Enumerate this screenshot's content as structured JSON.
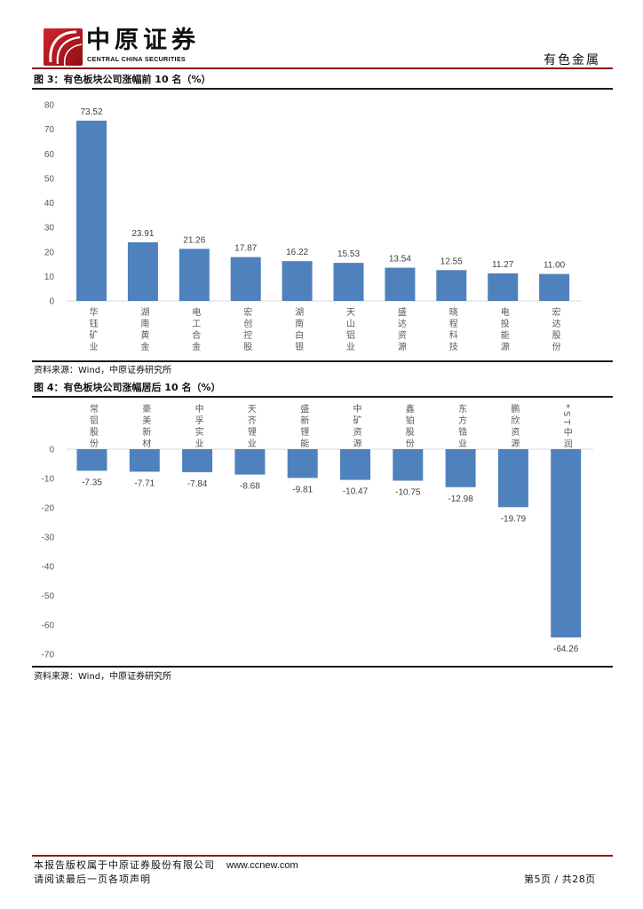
{
  "header": {
    "logo_cn": "中原证券",
    "logo_en": "CENTRAL CHINA SECURITIES",
    "section": "有色金属"
  },
  "colors": {
    "brand_red": "#8B1A1A",
    "bar": "#4F81BD"
  },
  "chart_data": [
    {
      "type": "bar",
      "title": "图 3：有色板块公司涨幅前 10 名（%）",
      "categories": [
        "华钰矿业",
        "湖南黄金",
        "电工合金",
        "宏创控股",
        "湖南白银",
        "天山铝业",
        "盛达资源",
        "晓程科技",
        "电投能源",
        "宏达股份"
      ],
      "values": [
        73.52,
        23.91,
        21.26,
        17.87,
        16.22,
        15.53,
        13.54,
        12.55,
        11.27,
        11.0
      ],
      "ylim": [
        0,
        80
      ],
      "yticks": [
        80,
        70,
        60,
        50,
        40,
        30,
        20,
        10,
        0
      ],
      "xlabel": "",
      "ylabel": "",
      "grid": false,
      "data_labels": true,
      "source": "资料来源：Wind，中原证券研究所"
    },
    {
      "type": "bar",
      "title": "图 4：有色板块公司涨幅居后 10 名（%）",
      "categories": [
        "常铝股份",
        "豪美新材",
        "中孚实业",
        "天齐锂业",
        "盛新锂能",
        "中矿资源",
        "鑫铂股份",
        "东方锆业",
        "鹏欣资源",
        "*ST中润"
      ],
      "values": [
        -7.35,
        -7.71,
        -7.84,
        -8.68,
        -9.81,
        -10.47,
        -10.75,
        -12.98,
        -19.79,
        -64.26
      ],
      "ylim": [
        -70,
        0
      ],
      "yticks": [
        0,
        -10,
        -20,
        -30,
        -40,
        -50,
        -60,
        -70
      ],
      "xlabel": "",
      "ylabel": "",
      "grid": false,
      "data_labels": true,
      "source": "资料来源：Wind，中原证券研究所"
    }
  ],
  "footer": {
    "copyright": "本报告版权属于中原证券股份有限公司",
    "website": "www.ccnew.com",
    "disclaimer": "请阅读最后一页各项声明",
    "page": "第5页 / 共28页"
  }
}
